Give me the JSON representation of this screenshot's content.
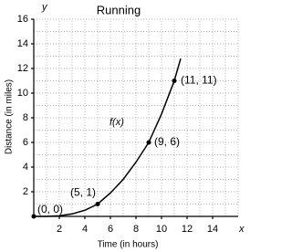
{
  "chart_data": {
    "type": "line",
    "title": "Running",
    "x_label": "Time (in hours)",
    "y_label": "Distance (in miles)",
    "x_axis_letter": "x",
    "y_axis_letter": "y",
    "curve_label": "f(x)",
    "x": [
      0,
      1,
      2,
      3,
      4,
      5,
      6,
      7,
      8,
      9,
      10,
      11,
      11.5
    ],
    "values": [
      0,
      0,
      0.05,
      0.2,
      0.5,
      1,
      1.9,
      3,
      4.4,
      6,
      8.3,
      11,
      12.8
    ],
    "color": "#000000",
    "points": {
      "x": [
        0,
        5,
        9,
        11
      ],
      "values": [
        0,
        1,
        6,
        11
      ],
      "value_labels": [
        "(0, 0)",
        "(5, 1)",
        "(9, 6)",
        "(11, 11)"
      ]
    },
    "xlim": [
      0,
      16
    ],
    "ylim": [
      0,
      16
    ],
    "xticks": [
      2,
      4,
      6,
      8,
      10,
      12,
      14
    ],
    "yticks": [
      2,
      4,
      6,
      8,
      10,
      12,
      14,
      16
    ],
    "xgrid": [
      1,
      2,
      3,
      4,
      5,
      6,
      7,
      8,
      9,
      10,
      11,
      12,
      13,
      14,
      15,
      16
    ],
    "ygrid": [
      1,
      2,
      3,
      4,
      5,
      6,
      7,
      8,
      9,
      10,
      11,
      12,
      13,
      14,
      15,
      16
    ],
    "grid": true
  }
}
